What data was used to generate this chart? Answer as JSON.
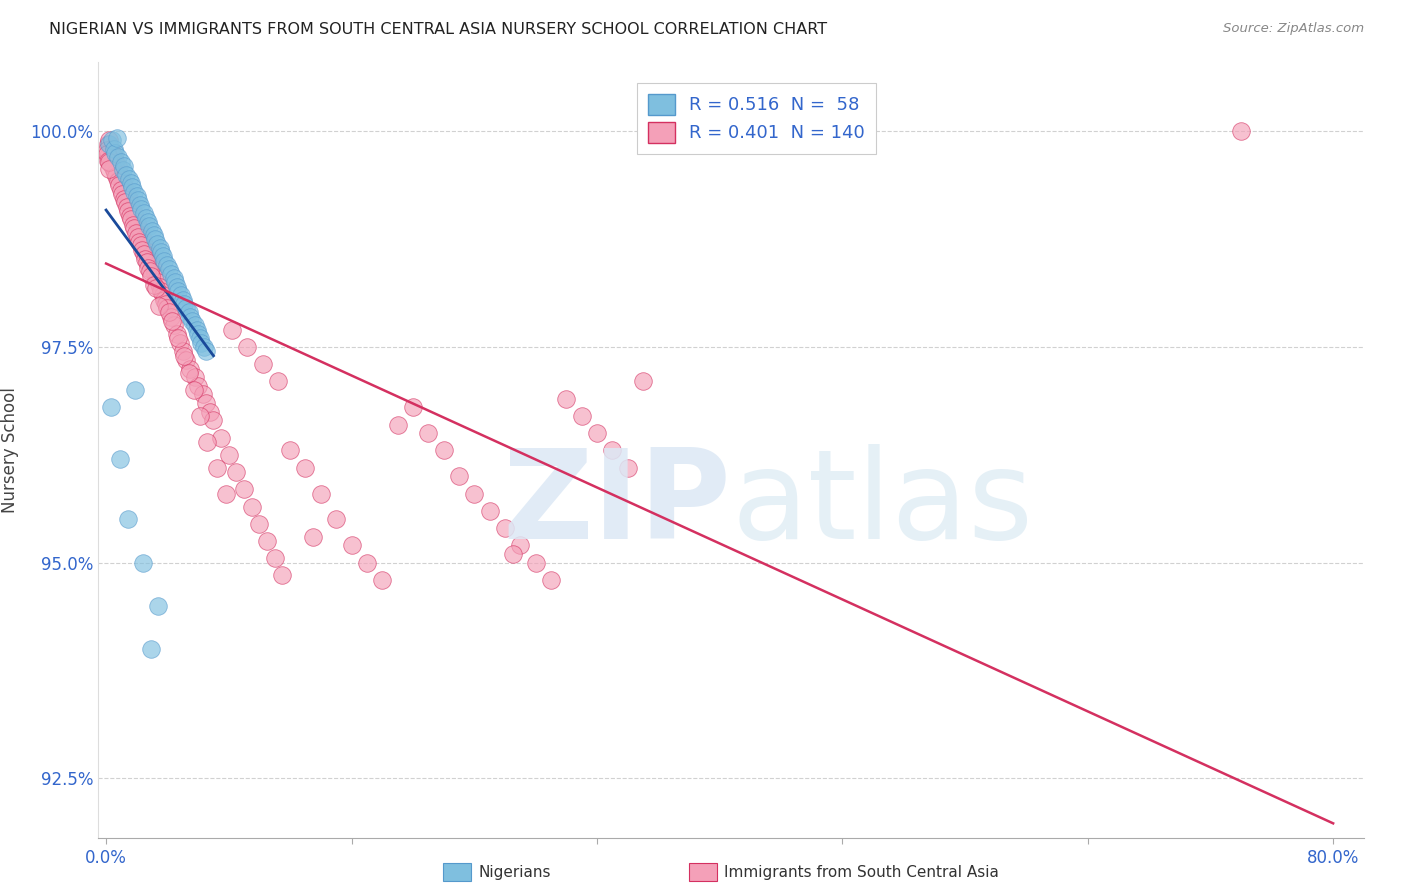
{
  "title": "NIGERIAN VS IMMIGRANTS FROM SOUTH CENTRAL ASIA NURSERY SCHOOL CORRELATION CHART",
  "source": "Source: ZipAtlas.com",
  "ylabel": "Nursery School",
  "yticks": [
    92.5,
    95.0,
    97.5,
    100.0
  ],
  "ytick_labels": [
    "92.5%",
    "95.0%",
    "97.5%",
    "100.0%"
  ],
  "xtick_labels": [
    "0.0%",
    "",
    "",
    "",
    "",
    "80.0%"
  ],
  "legend_label1": "Nigerians",
  "legend_label2": "Immigrants from South Central Asia",
  "R1": 0.516,
  "N1": 58,
  "R2": 0.401,
  "N2": 140,
  "color_blue": "#7fbfdf",
  "color_pink": "#f4a0b8",
  "color_blue_line": "#1a4a9a",
  "color_pink_line": "#d43060",
  "color_blue_text": "#3366cc",
  "xlim_min": -0.5,
  "xlim_max": 82.0,
  "ylim_min": 91.8,
  "ylim_max": 100.8,
  "blue_x": [
    0.2,
    0.4,
    0.5,
    0.6,
    0.8,
    1.0,
    1.1,
    1.2,
    1.3,
    1.5,
    1.6,
    1.7,
    1.8,
    2.0,
    2.1,
    2.2,
    2.3,
    2.5,
    2.6,
    2.7,
    2.8,
    3.0,
    3.1,
    3.2,
    3.3,
    3.5,
    3.6,
    3.7,
    3.8,
    4.0,
    4.1,
    4.2,
    4.4,
    4.5,
    4.6,
    4.7,
    4.9,
    5.0,
    5.1,
    5.2,
    5.4,
    5.5,
    5.6,
    5.8,
    5.9,
    6.0,
    6.1,
    6.2,
    6.4,
    6.5,
    0.3,
    0.9,
    1.4,
    2.4,
    3.4,
    2.9,
    1.9,
    0.7
  ],
  "blue_y": [
    99.85,
    99.9,
    99.8,
    99.75,
    99.7,
    99.65,
    99.55,
    99.6,
    99.5,
    99.45,
    99.4,
    99.35,
    99.3,
    99.25,
    99.2,
    99.15,
    99.1,
    99.05,
    99.0,
    98.95,
    98.9,
    98.85,
    98.8,
    98.75,
    98.7,
    98.65,
    98.6,
    98.55,
    98.5,
    98.45,
    98.4,
    98.35,
    98.3,
    98.25,
    98.2,
    98.15,
    98.1,
    98.05,
    98.0,
    97.95,
    97.9,
    97.85,
    97.8,
    97.75,
    97.7,
    97.65,
    97.6,
    97.55,
    97.5,
    97.45,
    96.8,
    96.2,
    95.5,
    95.0,
    94.5,
    94.0,
    97.0,
    99.92
  ],
  "pink_x": [
    0.1,
    0.2,
    0.3,
    0.4,
    0.5,
    0.6,
    0.7,
    0.8,
    0.9,
    1.0,
    1.1,
    1.2,
    1.3,
    1.4,
    1.5,
    1.6,
    1.7,
    1.8,
    1.9,
    2.0,
    2.1,
    2.2,
    2.3,
    2.4,
    2.5,
    2.6,
    2.7,
    2.8,
    2.9,
    3.0,
    3.1,
    3.2,
    3.3,
    3.4,
    3.5,
    3.6,
    3.7,
    3.8,
    3.9,
    4.0,
    4.2,
    4.4,
    4.6,
    4.8,
    5.0,
    5.2,
    5.5,
    5.8,
    6.0,
    6.3,
    6.5,
    6.8,
    7.0,
    7.5,
    8.0,
    8.5,
    9.0,
    9.5,
    10.0,
    10.5,
    11.0,
    11.5,
    12.0,
    13.0,
    14.0,
    15.0,
    16.0,
    17.0,
    18.0,
    19.0,
    20.0,
    21.0,
    22.0,
    23.0,
    24.0,
    25.0,
    26.0,
    27.0,
    28.0,
    29.0,
    30.0,
    31.0,
    32.0,
    33.0,
    34.0,
    35.0,
    0.15,
    0.25,
    0.35,
    0.45,
    0.55,
    0.65,
    0.75,
    0.85,
    0.95,
    1.05,
    1.15,
    1.25,
    1.35,
    1.45,
    1.55,
    1.65,
    1.75,
    1.85,
    1.95,
    2.05,
    2.15,
    2.25,
    2.35,
    2.45,
    2.55,
    2.65,
    2.75,
    2.85,
    2.95,
    3.15,
    3.25,
    3.45,
    4.1,
    4.3,
    4.7,
    5.1,
    5.4,
    5.7,
    6.1,
    6.6,
    7.2,
    7.8,
    8.2,
    9.2,
    10.2,
    11.2,
    13.5,
    26.5,
    74.0,
    0.05,
    0.08,
    0.12,
    0.18,
    0.22
  ],
  "pink_y": [
    99.85,
    99.9,
    99.8,
    99.75,
    99.7,
    99.65,
    99.55,
    99.6,
    99.5,
    99.45,
    99.4,
    99.35,
    99.3,
    99.25,
    99.2,
    99.15,
    99.1,
    99.05,
    99.0,
    98.95,
    98.9,
    98.85,
    98.8,
    98.75,
    98.7,
    98.65,
    98.6,
    98.55,
    98.5,
    98.45,
    98.4,
    98.35,
    98.3,
    98.25,
    98.2,
    98.15,
    98.1,
    98.05,
    98.0,
    97.95,
    97.85,
    97.75,
    97.65,
    97.55,
    97.45,
    97.35,
    97.25,
    97.15,
    97.05,
    96.95,
    96.85,
    96.75,
    96.65,
    96.45,
    96.25,
    96.05,
    95.85,
    95.65,
    95.45,
    95.25,
    95.05,
    94.85,
    96.3,
    96.1,
    95.8,
    95.5,
    95.2,
    95.0,
    94.8,
    96.6,
    96.8,
    96.5,
    96.3,
    96.0,
    95.8,
    95.6,
    95.4,
    95.2,
    95.0,
    94.8,
    96.9,
    96.7,
    96.5,
    96.3,
    96.1,
    97.1,
    99.72,
    99.68,
    99.62,
    99.58,
    99.52,
    99.48,
    99.42,
    99.38,
    99.32,
    99.28,
    99.22,
    99.18,
    99.12,
    99.08,
    99.02,
    98.98,
    98.92,
    98.88,
    98.82,
    98.78,
    98.72,
    98.68,
    98.62,
    98.58,
    98.52,
    98.48,
    98.42,
    98.38,
    98.32,
    98.22,
    98.18,
    97.98,
    97.9,
    97.8,
    97.6,
    97.4,
    97.2,
    97.0,
    96.7,
    96.4,
    96.1,
    95.8,
    97.7,
    97.5,
    97.3,
    97.1,
    95.3,
    95.1,
    100.0,
    99.78,
    99.74,
    99.66,
    99.64,
    99.56
  ]
}
